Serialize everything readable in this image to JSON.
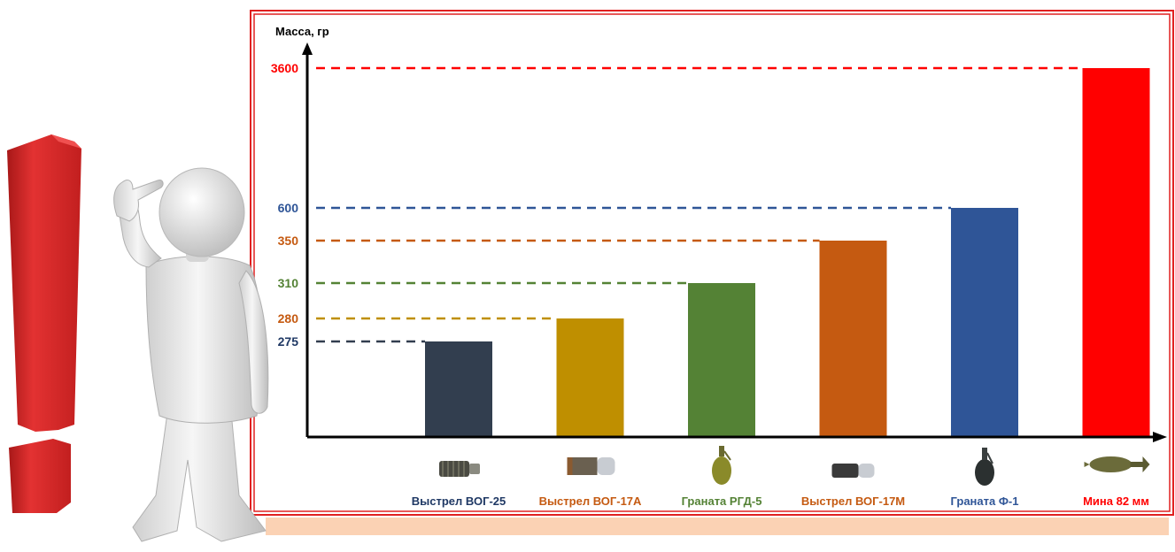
{
  "chart_data": {
    "type": "bar",
    "ylabel": "Масса, гр",
    "xlabel": "",
    "title": "",
    "ylim": [
      0,
      3600
    ],
    "scale": "broken",
    "grid": false,
    "categories": [
      "Выстрел ВОГ-25",
      "Выстрел ВОГ-17А",
      "Граната РГД-5",
      "Выстрел ВОГ-17М",
      "Граната Ф-1",
      "Мина 82 мм"
    ],
    "values": [
      275,
      280,
      310,
      350,
      600,
      3600
    ],
    "tick_labels": [
      "275",
      "280",
      "310",
      "350",
      "600",
      "3600"
    ],
    "colors": [
      "#323e4f",
      "#bf8f00",
      "#548235",
      "#c55a11",
      "#2f5597",
      "#ff0000"
    ],
    "label_colors": [
      "#1f3864",
      "#c55a11",
      "#548235",
      "#c55a11",
      "#2f5597",
      "#ff0000"
    ],
    "icons": [
      "vog25-shell-icon",
      "vog17a-shell-icon",
      "rgd5-grenade-icon",
      "vog17m-shell-icon",
      "f1-grenade-icon",
      "mortar-82mm-icon"
    ]
  },
  "frame_color": "#e02020",
  "band_color": "#fbd2b4"
}
